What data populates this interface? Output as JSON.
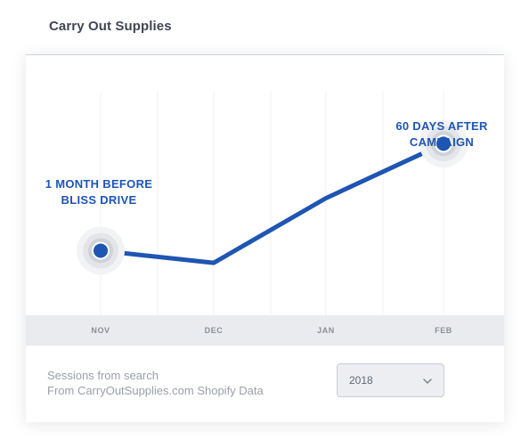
{
  "app": {
    "title": "Carry Out Supplies"
  },
  "chart_data": {
    "type": "line",
    "categories": [
      "NOV",
      "DEC",
      "JAN",
      "FEB"
    ],
    "series": [
      {
        "values": [
          3.2,
          2.6,
          5.8,
          8.5
        ]
      }
    ],
    "ylim": [
      0,
      12
    ],
    "grid": false,
    "highlighted_points": [
      0,
      3
    ],
    "annotations": [
      {
        "point": 0,
        "lines": [
          "1 MONTH BEFORE",
          "BLISS DRIVE"
        ]
      },
      {
        "point": 3,
        "lines": [
          "60 DAYS AFTER",
          "CAMPAIGN"
        ]
      }
    ],
    "colors": {
      "line": "#1f55b3",
      "halo": "#d5d7dc",
      "axis_band": "#e9ebee"
    }
  },
  "footer": {
    "line1": "Sessions from search",
    "line2": "From CarryOutSupplies.com Shopify Data"
  },
  "year_select": {
    "selected": "2018",
    "icon": "chevron-down-icon"
  }
}
